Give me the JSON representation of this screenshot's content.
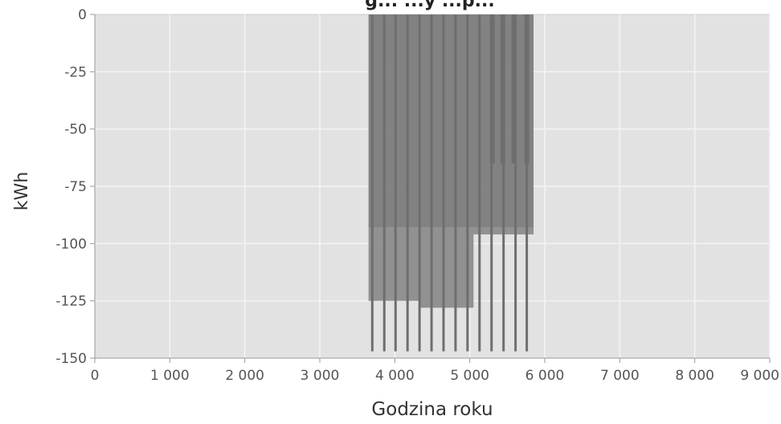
{
  "chart_data": {
    "type": "area",
    "title": "",
    "title_partial_visible": "g... ...y ...p...",
    "xlabel": "Godzina roku",
    "ylabel": "kWh",
    "xlim": [
      0,
      9000
    ],
    "ylim": [
      -150,
      0
    ],
    "x_ticks": [
      0,
      1000,
      2000,
      3000,
      4000,
      5000,
      6000,
      7000,
      8000,
      9000
    ],
    "x_tick_labels": [
      "0",
      "1 000",
      "2 000",
      "3 000",
      "4 000",
      "5 000",
      "6 000",
      "7 000",
      "8 000",
      "9 000"
    ],
    "y_ticks": [
      0,
      -25,
      -50,
      -75,
      -100,
      -125,
      -150
    ],
    "y_tick_labels": [
      "0",
      "-25",
      "-50",
      "-75",
      "-100",
      "-125",
      "-150"
    ],
    "grid": true,
    "legend": "none",
    "colors": {
      "plot_background": "#e2e2e2",
      "grid": "#f4f4f4",
      "series_fill": "#8a8a8a",
      "series_dark": "#7a7a7a",
      "spike": "#6e6e6e",
      "axis_text": "#555555"
    },
    "series": [
      {
        "blocks": [
          {
            "x": [
              3650,
              5850
            ],
            "y": [
              0,
              -93
            ],
            "shade": "dark"
          },
          {
            "x": [
              3650,
              4340
            ],
            "y": [
              -93,
              -125
            ],
            "shade": "mid"
          },
          {
            "x": [
              4340,
              5050
            ],
            "y": [
              -93,
              -128
            ],
            "shade": "mid"
          },
          {
            "x": [
              5050,
              5850
            ],
            "y": [
              -93,
              -96
            ],
            "shade": "mid"
          }
        ],
        "spikes": [
          {
            "x": 3700,
            "y": -147
          },
          {
            "x": 3860,
            "y": -147
          },
          {
            "x": 4010,
            "y": -147
          },
          {
            "x": 4170,
            "y": -147
          },
          {
            "x": 4330,
            "y": -147
          },
          {
            "x": 4490,
            "y": -147
          },
          {
            "x": 4650,
            "y": -147
          },
          {
            "x": 4810,
            "y": -147
          },
          {
            "x": 4970,
            "y": -147
          },
          {
            "x": 5130,
            "y": -147
          },
          {
            "x": 5290,
            "y": -147
          },
          {
            "x": 5450,
            "y": -147
          },
          {
            "x": 5610,
            "y": -147
          },
          {
            "x": 5760,
            "y": -147
          }
        ],
        "upper_spikes": [
          {
            "x": 5300,
            "y": -65
          },
          {
            "x": 5440,
            "y": -65
          },
          {
            "x": 5590,
            "y": -65
          },
          {
            "x": 5760,
            "y": -65
          }
        ]
      }
    ]
  }
}
